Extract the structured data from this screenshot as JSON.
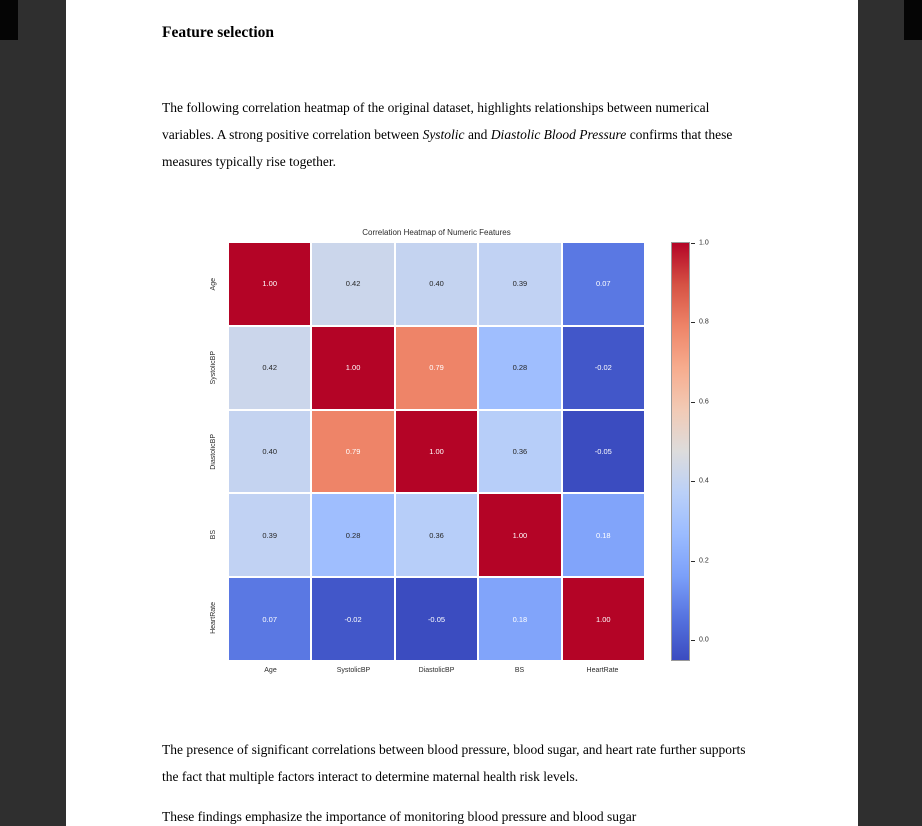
{
  "document": {
    "heading": "Feature selection",
    "para1": {
      "segments": [
        {
          "text": "The following correlation heatmap of the original dataset, highlights relationships between numerical variables. A strong positive correlation between ",
          "italic": false
        },
        {
          "text": "Systolic",
          "italic": true
        },
        {
          "text": " and ",
          "italic": false
        },
        {
          "text": "Diastolic Blood Pressure",
          "italic": true
        },
        {
          "text": " confirms that these measures typically rise together.",
          "italic": false
        }
      ]
    },
    "para2": "The presence of significant correlations between blood pressure, blood sugar, and heart rate further supports the fact that multiple factors interact to determine maternal health risk levels.",
    "para3": "These findings emphasize the importance of monitoring blood pressure and blood sugar"
  },
  "chart_data": {
    "type": "heatmap",
    "title": "Correlation Heatmap of Numeric Features",
    "categories": [
      "Age",
      "SystolicBP",
      "DiastolicBP",
      "BS",
      "HeartRate"
    ],
    "matrix": [
      [
        1.0,
        0.42,
        0.4,
        0.39,
        0.07
      ],
      [
        0.42,
        1.0,
        0.79,
        0.28,
        -0.02
      ],
      [
        0.4,
        0.79,
        1.0,
        0.36,
        -0.05
      ],
      [
        0.39,
        0.28,
        0.36,
        1.0,
        0.18
      ],
      [
        0.07,
        -0.02,
        -0.05,
        0.18,
        1.0
      ]
    ],
    "vmin": -0.05,
    "vmax": 1.0,
    "colormap": "coolwarm",
    "colorbar_ticks": [
      1.0,
      0.8,
      0.6,
      0.4,
      0.2,
      0.0
    ],
    "colormap_stops": [
      {
        "t": 0.0,
        "color": "#3b4cc0"
      },
      {
        "t": 0.1,
        "color": "#5572df"
      },
      {
        "t": 0.2,
        "color": "#7b9ff9"
      },
      {
        "t": 0.3,
        "color": "#9abbff"
      },
      {
        "t": 0.4,
        "color": "#bad0f8"
      },
      {
        "t": 0.5,
        "color": "#dddcdc"
      },
      {
        "t": 0.6,
        "color": "#f2cab5"
      },
      {
        "t": 0.7,
        "color": "#f7ac8e"
      },
      {
        "t": 0.8,
        "color": "#ee8468"
      },
      {
        "t": 0.9,
        "color": "#d65244"
      },
      {
        "t": 1.0,
        "color": "#b40426"
      }
    ],
    "annot_colors": {
      "light_text": "#ffffff",
      "dark_text": "#262626"
    }
  }
}
